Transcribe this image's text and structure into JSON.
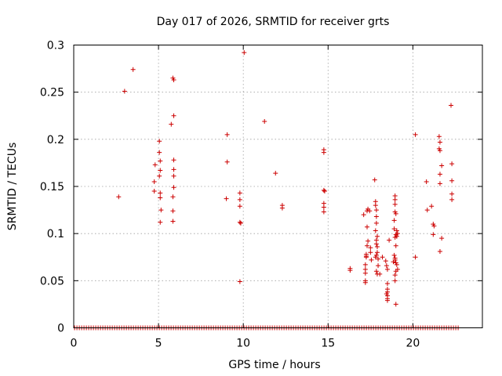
{
  "chart_data": {
    "type": "scatter",
    "title": "Day 017 of 2026, SRMTID for receiver grts",
    "xlabel": "GPS time / hours",
    "ylabel": "SRMTID / TECUs",
    "xlim": [
      0,
      24.1
    ],
    "ylim": [
      0,
      0.3
    ],
    "xticks": [
      0,
      5,
      10,
      15,
      20
    ],
    "yticks": [
      0,
      0.05,
      0.1,
      0.15,
      0.2,
      0.25,
      0.3
    ],
    "ytick_labels": [
      "0",
      "0.05",
      "0.1",
      "0.15",
      "0.2",
      "0.25",
      "0.3"
    ],
    "grid": true,
    "marker": "+",
    "color": "#cc0000",
    "zero_band": {
      "x_start": 0.05,
      "x_end": 22.7,
      "y": 0
    },
    "series": [
      {
        "name": "SRMTID",
        "points": [
          [
            2.65,
            0.139
          ],
          [
            3.0,
            0.251
          ],
          [
            3.5,
            0.274
          ],
          [
            4.8,
            0.173
          ],
          [
            4.75,
            0.155
          ],
          [
            4.75,
            0.145
          ],
          [
            5.05,
            0.198
          ],
          [
            5.05,
            0.186
          ],
          [
            5.1,
            0.177
          ],
          [
            5.1,
            0.167
          ],
          [
            5.05,
            0.161
          ],
          [
            5.1,
            0.143
          ],
          [
            5.1,
            0.138
          ],
          [
            5.15,
            0.125
          ],
          [
            5.1,
            0.112
          ],
          [
            5.75,
            0.216
          ],
          [
            5.85,
            0.265
          ],
          [
            5.9,
            0.263
          ],
          [
            5.9,
            0.225
          ],
          [
            5.9,
            0.178
          ],
          [
            5.9,
            0.168
          ],
          [
            5.9,
            0.161
          ],
          [
            5.9,
            0.149
          ],
          [
            5.85,
            0.139
          ],
          [
            5.85,
            0.124
          ],
          [
            5.85,
            0.113
          ],
          [
            9.05,
            0.205
          ],
          [
            9.05,
            0.176
          ],
          [
            9.0,
            0.137
          ],
          [
            9.8,
            0.143
          ],
          [
            9.8,
            0.136
          ],
          [
            9.8,
            0.129
          ],
          [
            9.8,
            0.112
          ],
          [
            9.85,
            0.111
          ],
          [
            9.8,
            0.049
          ],
          [
            10.05,
            0.292
          ],
          [
            11.25,
            0.219
          ],
          [
            11.9,
            0.164
          ],
          [
            12.3,
            0.13
          ],
          [
            12.3,
            0.127
          ],
          [
            14.75,
            0.189
          ],
          [
            14.75,
            0.186
          ],
          [
            14.75,
            0.146
          ],
          [
            14.8,
            0.145
          ],
          [
            14.75,
            0.132
          ],
          [
            14.75,
            0.128
          ],
          [
            14.75,
            0.123
          ],
          [
            16.3,
            0.063
          ],
          [
            16.3,
            0.061
          ],
          [
            17.1,
            0.12
          ],
          [
            17.3,
            0.124
          ],
          [
            17.35,
            0.126
          ],
          [
            17.45,
            0.124
          ],
          [
            17.3,
            0.107
          ],
          [
            17.35,
            0.092
          ],
          [
            17.3,
            0.087
          ],
          [
            17.25,
            0.078
          ],
          [
            17.25,
            0.076
          ],
          [
            17.25,
            0.075
          ],
          [
            17.2,
            0.067
          ],
          [
            17.2,
            0.062
          ],
          [
            17.2,
            0.058
          ],
          [
            17.2,
            0.05
          ],
          [
            17.2,
            0.048
          ],
          [
            17.5,
            0.085
          ],
          [
            17.5,
            0.08
          ],
          [
            17.55,
            0.072
          ],
          [
            17.75,
            0.157
          ],
          [
            17.8,
            0.134
          ],
          [
            17.8,
            0.13
          ],
          [
            17.85,
            0.125
          ],
          [
            17.85,
            0.118
          ],
          [
            17.85,
            0.111
          ],
          [
            17.8,
            0.103
          ],
          [
            17.9,
            0.097
          ],
          [
            17.85,
            0.093
          ],
          [
            17.85,
            0.089
          ],
          [
            17.9,
            0.086
          ],
          [
            17.9,
            0.08
          ],
          [
            17.85,
            0.077
          ],
          [
            17.8,
            0.075
          ],
          [
            17.95,
            0.073
          ],
          [
            17.95,
            0.066
          ],
          [
            17.85,
            0.06
          ],
          [
            17.9,
            0.057
          ],
          [
            18.05,
            0.057
          ],
          [
            18.2,
            0.075
          ],
          [
            18.4,
            0.071
          ],
          [
            18.45,
            0.066
          ],
          [
            18.5,
            0.062
          ],
          [
            18.5,
            0.047
          ],
          [
            18.5,
            0.041
          ],
          [
            18.5,
            0.038
          ],
          [
            18.45,
            0.036
          ],
          [
            18.5,
            0.034
          ],
          [
            18.5,
            0.031
          ],
          [
            18.5,
            0.029
          ],
          [
            18.6,
            0.093
          ],
          [
            18.95,
            0.14
          ],
          [
            18.95,
            0.136
          ],
          [
            18.95,
            0.131
          ],
          [
            18.95,
            0.123
          ],
          [
            19.0,
            0.121
          ],
          [
            18.9,
            0.114
          ],
          [
            18.9,
            0.105
          ],
          [
            19.05,
            0.103
          ],
          [
            19.0,
            0.099
          ],
          [
            18.95,
            0.096
          ],
          [
            19.05,
            0.097
          ],
          [
            19.1,
            0.1
          ],
          [
            19.0,
            0.087
          ],
          [
            18.9,
            0.077
          ],
          [
            18.95,
            0.074
          ],
          [
            18.95,
            0.072
          ],
          [
            19.0,
            0.069
          ],
          [
            19.05,
            0.067
          ],
          [
            19.1,
            0.062
          ],
          [
            19.0,
            0.06
          ],
          [
            18.95,
            0.056
          ],
          [
            18.95,
            0.05
          ],
          [
            18.85,
            0.07
          ],
          [
            19.0,
            0.025
          ],
          [
            20.15,
            0.205
          ],
          [
            20.15,
            0.075
          ],
          [
            20.8,
            0.155
          ],
          [
            20.85,
            0.125
          ],
          [
            21.1,
            0.129
          ],
          [
            21.2,
            0.11
          ],
          [
            21.25,
            0.108
          ],
          [
            21.2,
            0.099
          ],
          [
            21.55,
            0.203
          ],
          [
            21.6,
            0.197
          ],
          [
            21.55,
            0.19
          ],
          [
            21.6,
            0.188
          ],
          [
            21.7,
            0.172
          ],
          [
            21.6,
            0.163
          ],
          [
            21.6,
            0.153
          ],
          [
            21.7,
            0.095
          ],
          [
            21.6,
            0.081
          ],
          [
            22.25,
            0.236
          ],
          [
            22.3,
            0.174
          ],
          [
            22.3,
            0.156
          ],
          [
            22.3,
            0.142
          ],
          [
            22.3,
            0.136
          ]
        ]
      }
    ]
  }
}
